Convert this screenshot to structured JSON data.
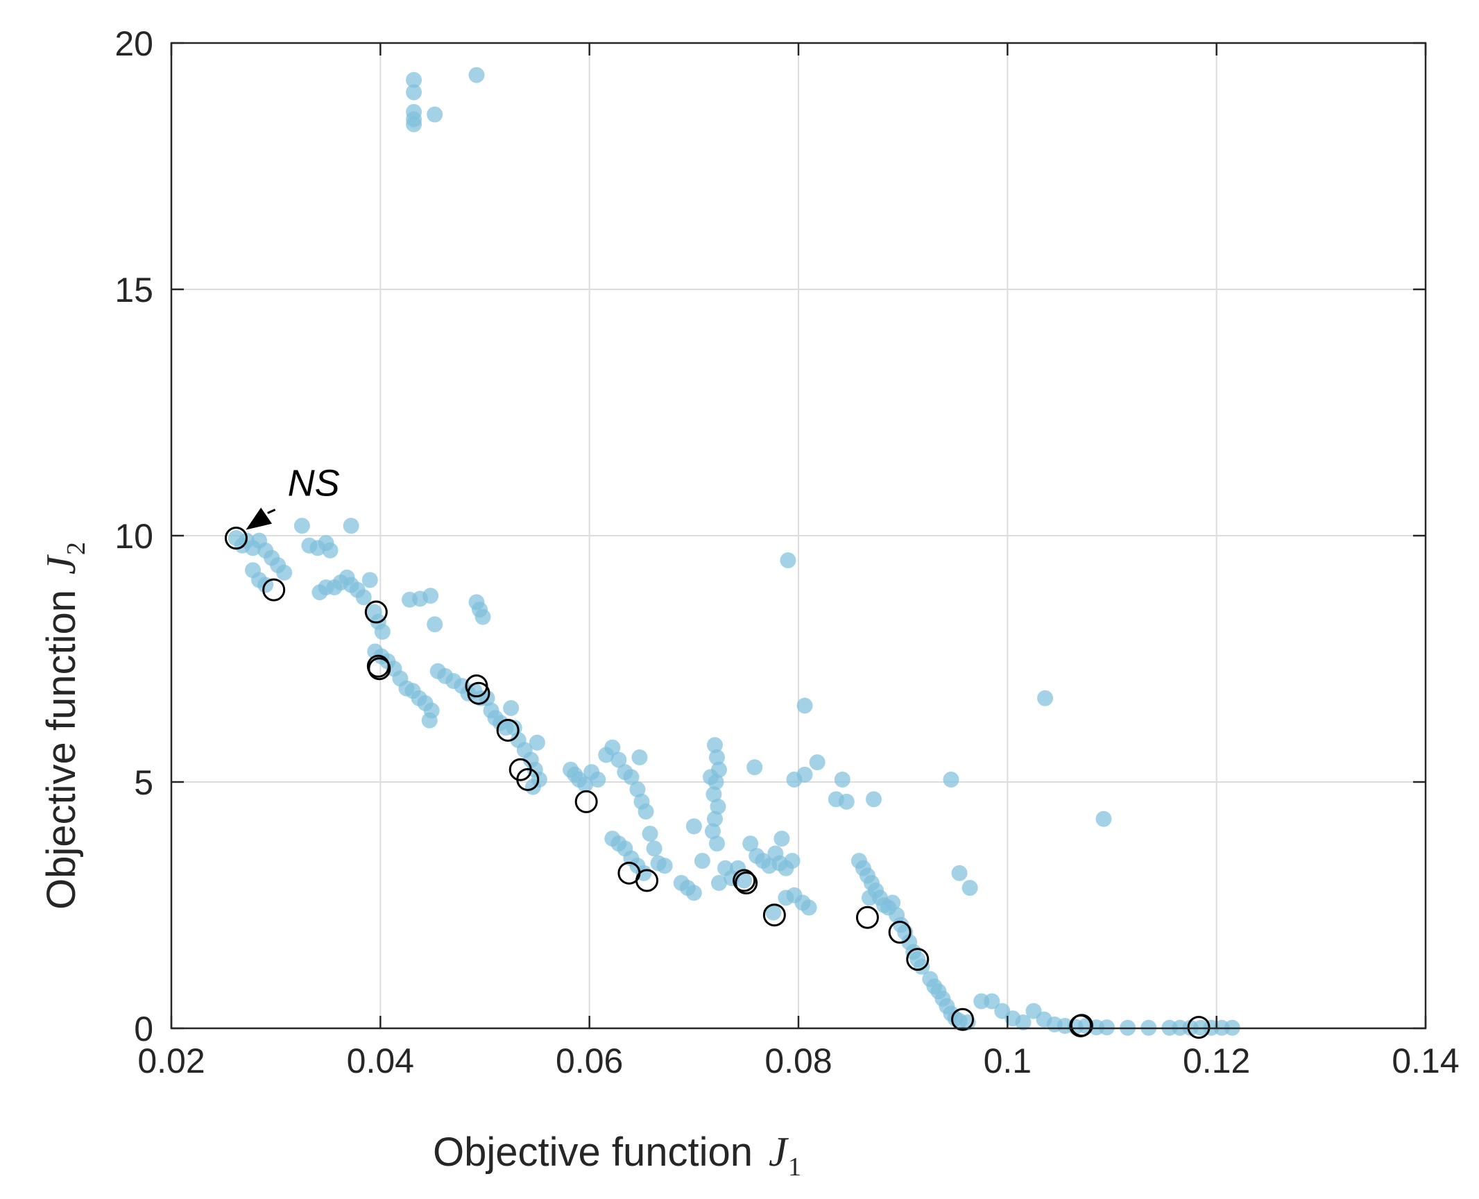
{
  "chart_data": {
    "type": "scatter",
    "title": "",
    "xlabel": {
      "text": "Objective function",
      "symbol": "J",
      "subscript": "1"
    },
    "ylabel": {
      "text": "Objective function",
      "symbol": "J",
      "subscript": "2"
    },
    "xlim": [
      0.02,
      0.14
    ],
    "ylim": [
      0,
      20
    ],
    "xticks": [
      0.02,
      0.04,
      0.06,
      0.08,
      0.1,
      0.12,
      0.14
    ],
    "xtick_labels": [
      "0.02",
      "0.04",
      "0.06",
      "0.08",
      "0.1",
      "0.12",
      "0.14"
    ],
    "yticks": [
      0,
      5,
      10,
      15,
      20
    ],
    "ytick_labels": [
      "0",
      "5",
      "10",
      "15",
      "20"
    ],
    "grid": true,
    "colors": {
      "population": "#7fbfdd",
      "pareto_edge": "#000000",
      "axis": "#262626",
      "grid": "#dcdcdc"
    },
    "annotation": {
      "text": "NS",
      "point": [
        0.0262,
        9.95
      ],
      "text_at": [
        0.0298,
        10.95
      ]
    },
    "series": [
      {
        "name": "population",
        "marker": "filled-circle",
        "points": [
          [
            0.0262,
            9.95
          ],
          [
            0.0268,
            9.8
          ],
          [
            0.0272,
            9.9
          ],
          [
            0.0278,
            9.75
          ],
          [
            0.0284,
            9.9
          ],
          [
            0.029,
            9.7
          ],
          [
            0.0296,
            9.55
          ],
          [
            0.0302,
            9.4
          ],
          [
            0.0308,
            9.25
          ],
          [
            0.0278,
            9.3
          ],
          [
            0.0284,
            9.1
          ],
          [
            0.029,
            9.0
          ],
          [
            0.0325,
            10.2
          ],
          [
            0.0332,
            9.8
          ],
          [
            0.034,
            9.75
          ],
          [
            0.0348,
            9.85
          ],
          [
            0.0352,
            9.7
          ],
          [
            0.0342,
            8.85
          ],
          [
            0.0348,
            8.95
          ],
          [
            0.0356,
            8.95
          ],
          [
            0.0362,
            9.05
          ],
          [
            0.0368,
            9.15
          ],
          [
            0.0372,
            9.0
          ],
          [
            0.0378,
            8.9
          ],
          [
            0.0384,
            8.75
          ],
          [
            0.0372,
            10.2
          ],
          [
            0.039,
            9.1
          ],
          [
            0.0394,
            8.45
          ],
          [
            0.0398,
            8.25
          ],
          [
            0.0402,
            8.05
          ],
          [
            0.0395,
            7.65
          ],
          [
            0.0401,
            7.55
          ],
          [
            0.0407,
            7.45
          ],
          [
            0.0413,
            7.3
          ],
          [
            0.0419,
            7.1
          ],
          [
            0.0425,
            6.9
          ],
          [
            0.0431,
            6.85
          ],
          [
            0.0437,
            6.7
          ],
          [
            0.0443,
            6.6
          ],
          [
            0.0449,
            6.45
          ],
          [
            0.0447,
            6.25
          ],
          [
            0.0428,
            8.7
          ],
          [
            0.0438,
            8.72
          ],
          [
            0.0448,
            8.78
          ],
          [
            0.0452,
            8.2
          ],
          [
            0.0455,
            7.25
          ],
          [
            0.0462,
            7.15
          ],
          [
            0.047,
            7.05
          ],
          [
            0.0478,
            6.95
          ],
          [
            0.0484,
            6.8
          ],
          [
            0.049,
            6.85
          ],
          [
            0.0496,
            6.7
          ],
          [
            0.0492,
            8.65
          ],
          [
            0.0495,
            8.5
          ],
          [
            0.0498,
            8.35
          ],
          [
            0.0502,
            6.7
          ],
          [
            0.0506,
            6.45
          ],
          [
            0.051,
            6.3
          ],
          [
            0.0515,
            6.2
          ],
          [
            0.052,
            6.1
          ],
          [
            0.0525,
            6.5
          ],
          [
            0.0528,
            6.1
          ],
          [
            0.0532,
            5.85
          ],
          [
            0.0538,
            5.65
          ],
          [
            0.0544,
            5.45
          ],
          [
            0.0548,
            5.25
          ],
          [
            0.0552,
            5.05
          ],
          [
            0.0546,
            4.9
          ],
          [
            0.055,
            5.8
          ],
          [
            0.0582,
            5.25
          ],
          [
            0.0586,
            5.15
          ],
          [
            0.059,
            5.05
          ],
          [
            0.0596,
            4.95
          ],
          [
            0.0602,
            5.2
          ],
          [
            0.0608,
            5.05
          ],
          [
            0.0616,
            5.55
          ],
          [
            0.0622,
            5.7
          ],
          [
            0.0628,
            5.45
          ],
          [
            0.0634,
            5.2
          ],
          [
            0.064,
            5.1
          ],
          [
            0.0646,
            4.85
          ],
          [
            0.065,
            4.6
          ],
          [
            0.0654,
            4.4
          ],
          [
            0.0648,
            5.5
          ],
          [
            0.0622,
            3.85
          ],
          [
            0.0628,
            3.75
          ],
          [
            0.0634,
            3.65
          ],
          [
            0.064,
            3.45
          ],
          [
            0.0646,
            3.3
          ],
          [
            0.0652,
            3.15
          ],
          [
            0.0658,
            3.95
          ],
          [
            0.0662,
            3.65
          ],
          [
            0.0666,
            3.35
          ],
          [
            0.0672,
            3.3
          ],
          [
            0.0688,
            2.95
          ],
          [
            0.0694,
            2.85
          ],
          [
            0.07,
            2.75
          ],
          [
            0.0708,
            3.4
          ],
          [
            0.07,
            4.1
          ],
          [
            0.072,
            5.75
          ],
          [
            0.0722,
            5.5
          ],
          [
            0.0724,
            5.25
          ],
          [
            0.0721,
            5.0
          ],
          [
            0.0719,
            4.75
          ],
          [
            0.0723,
            4.5
          ],
          [
            0.072,
            4.25
          ],
          [
            0.0718,
            4.0
          ],
          [
            0.0722,
            3.75
          ],
          [
            0.0716,
            5.1
          ],
          [
            0.0724,
            2.95
          ],
          [
            0.073,
            3.25
          ],
          [
            0.0736,
            3.05
          ],
          [
            0.0742,
            3.25
          ],
          [
            0.0748,
            3.0
          ],
          [
            0.0758,
            5.3
          ],
          [
            0.0754,
            3.75
          ],
          [
            0.076,
            3.5
          ],
          [
            0.0766,
            3.4
          ],
          [
            0.0772,
            3.3
          ],
          [
            0.0778,
            3.55
          ],
          [
            0.0782,
            3.35
          ],
          [
            0.0788,
            3.25
          ],
          [
            0.0794,
            3.4
          ],
          [
            0.0784,
            3.85
          ],
          [
            0.0776,
            2.35
          ],
          [
            0.0788,
            2.65
          ],
          [
            0.0796,
            2.7
          ],
          [
            0.0804,
            2.55
          ],
          [
            0.081,
            2.45
          ],
          [
            0.079,
            9.5
          ],
          [
            0.0806,
            6.55
          ],
          [
            0.0818,
            5.4
          ],
          [
            0.0796,
            5.05
          ],
          [
            0.0806,
            5.15
          ],
          [
            0.0836,
            4.65
          ],
          [
            0.0846,
            4.6
          ],
          [
            0.0842,
            5.05
          ],
          [
            0.0872,
            4.65
          ],
          [
            0.0946,
            5.05
          ],
          [
            0.1036,
            6.7
          ],
          [
            0.1092,
            4.25
          ],
          [
            0.0858,
            3.4
          ],
          [
            0.0862,
            3.25
          ],
          [
            0.0866,
            3.1
          ],
          [
            0.087,
            2.95
          ],
          [
            0.0874,
            2.8
          ],
          [
            0.0878,
            2.65
          ],
          [
            0.0882,
            2.5
          ],
          [
            0.0886,
            2.45
          ],
          [
            0.089,
            2.55
          ],
          [
            0.0894,
            2.3
          ],
          [
            0.0898,
            2.1
          ],
          [
            0.0902,
            1.95
          ],
          [
            0.0906,
            1.75
          ],
          [
            0.091,
            1.55
          ],
          [
            0.0914,
            1.4
          ],
          [
            0.0918,
            1.25
          ],
          [
            0.0868,
            2.65
          ],
          [
            0.0926,
            1.0
          ],
          [
            0.093,
            0.85
          ],
          [
            0.0934,
            0.75
          ],
          [
            0.0938,
            0.6
          ],
          [
            0.0942,
            0.45
          ],
          [
            0.0946,
            0.3
          ],
          [
            0.095,
            0.2
          ],
          [
            0.0954,
            0.15
          ],
          [
            0.0962,
            0.12
          ],
          [
            0.0954,
            3.15
          ],
          [
            0.0964,
            2.85
          ],
          [
            0.0975,
            0.55
          ],
          [
            0.0985,
            0.55
          ],
          [
            0.0995,
            0.35
          ],
          [
            0.1005,
            0.2
          ],
          [
            0.1015,
            0.12
          ],
          [
            0.1025,
            0.35
          ],
          [
            0.1035,
            0.18
          ],
          [
            0.1045,
            0.08
          ],
          [
            0.1055,
            0.05
          ],
          [
            0.1065,
            0.03
          ],
          [
            0.1075,
            0.05
          ],
          [
            0.1085,
            0.02
          ],
          [
            0.1095,
            0.02
          ],
          [
            0.1115,
            0.01
          ],
          [
            0.1135,
            0.01
          ],
          [
            0.1155,
            0.01
          ],
          [
            0.1165,
            0.01
          ],
          [
            0.1175,
            0.01
          ],
          [
            0.1185,
            0.01
          ],
          [
            0.1195,
            0.01
          ],
          [
            0.1205,
            0.01
          ],
          [
            0.1215,
            0.01
          ],
          [
            0.0432,
            19.25
          ],
          [
            0.0432,
            19.0
          ],
          [
            0.0432,
            18.6
          ],
          [
            0.0432,
            18.45
          ],
          [
            0.0432,
            18.35
          ],
          [
            0.0452,
            18.55
          ],
          [
            0.0492,
            19.35
          ]
        ]
      },
      {
        "name": "pareto-selected",
        "marker": "open-circle",
        "points": [
          [
            0.0262,
            9.95
          ],
          [
            0.0298,
            8.9
          ],
          [
            0.0396,
            8.45
          ],
          [
            0.0398,
            7.35
          ],
          [
            0.0399,
            7.3
          ],
          [
            0.0492,
            6.95
          ],
          [
            0.0494,
            6.8
          ],
          [
            0.0522,
            6.05
          ],
          [
            0.0534,
            5.25
          ],
          [
            0.0541,
            5.05
          ],
          [
            0.0597,
            4.6
          ],
          [
            0.0638,
            3.15
          ],
          [
            0.0655,
            3.0
          ],
          [
            0.0748,
            3.0
          ],
          [
            0.075,
            2.95
          ],
          [
            0.0777,
            2.3
          ],
          [
            0.0866,
            2.25
          ],
          [
            0.0897,
            1.95
          ],
          [
            0.0914,
            1.4
          ],
          [
            0.0957,
            0.18
          ],
          [
            0.107,
            0.05
          ],
          [
            0.1071,
            0.06
          ],
          [
            0.1183,
            0.02
          ]
        ]
      }
    ]
  }
}
